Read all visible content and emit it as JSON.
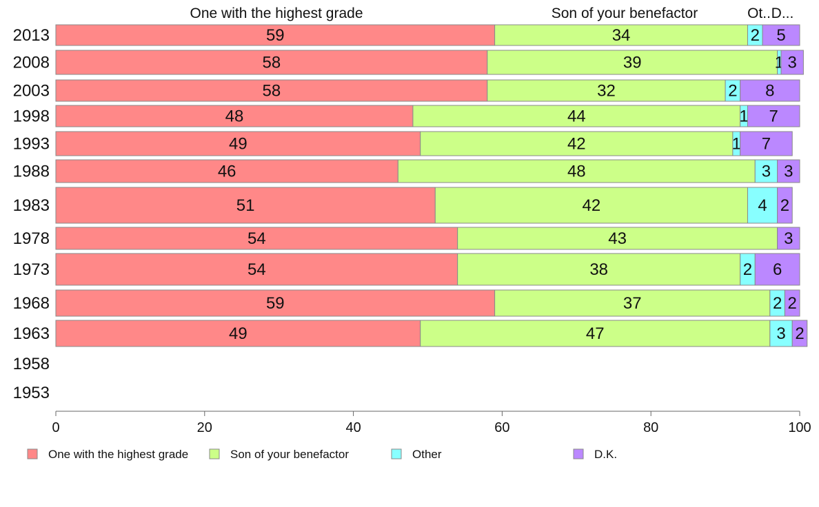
{
  "chart_data": {
    "type": "bar",
    "orientation": "horizontal",
    "stacked": true,
    "xlim": [
      0,
      100
    ],
    "x_ticks": [
      0,
      20,
      40,
      60,
      80,
      100
    ],
    "grid": false,
    "legend_position": "bottom",
    "categories": [
      "2013",
      "2008",
      "2003",
      "1998",
      "1993",
      "1988",
      "1983",
      "1978",
      "1973",
      "1968",
      "1963",
      "1958",
      "1953"
    ],
    "series": [
      {
        "name": "One with the highest grade",
        "color": "#ff8888",
        "values": [
          59,
          58,
          58,
          48,
          49,
          46,
          51,
          54,
          54,
          59,
          49,
          null,
          null
        ],
        "labels": [
          "59",
          "58",
          "58",
          "48",
          "49",
          "46",
          "51",
          "54",
          "54",
          "59",
          "49",
          "",
          ""
        ]
      },
      {
        "name": "Son of your benefactor",
        "color": "#ccff88",
        "values": [
          34,
          39,
          32,
          44,
          42,
          48,
          42,
          43,
          38,
          37,
          47,
          null,
          null
        ],
        "labels": [
          "34",
          "39",
          "32",
          "44",
          "42",
          "48",
          "42",
          "43",
          "38",
          "37",
          "47",
          "",
          ""
        ]
      },
      {
        "name": "Other",
        "color": "#88ffff",
        "values": [
          2,
          0.5,
          2,
          1,
          1,
          3,
          4,
          0,
          2,
          2,
          3,
          null,
          null
        ],
        "labels": [
          "2",
          "1",
          "2",
          "1",
          "1",
          "3",
          "4",
          "",
          "2",
          "2",
          "3",
          "",
          ""
        ]
      },
      {
        "name": "D.K.",
        "color": "#bb88ff",
        "values": [
          5,
          3,
          8,
          7,
          7,
          3,
          2,
          3,
          6,
          2,
          2,
          null,
          null
        ],
        "labels": [
          "5",
          "3",
          "8",
          "7",
          "7",
          "3",
          "2",
          "3",
          "6",
          "2",
          "2",
          "",
          ""
        ]
      }
    ],
    "column_headers": [
      "One with the highest grade",
      "Son of your benefactor",
      "Ot..",
      "D..."
    ]
  }
}
